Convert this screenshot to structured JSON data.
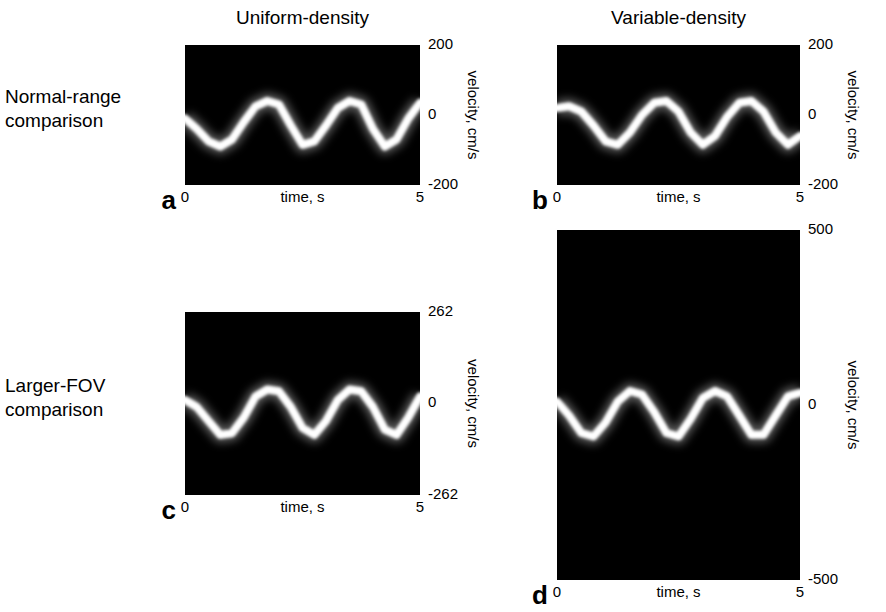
{
  "figure": {
    "column_titles": [
      "Uniform-density",
      "Variable-density"
    ],
    "row_titles": [
      "Normal-range comparison",
      "Larger-FOV comparison"
    ]
  },
  "chart_data": [
    {
      "type": "line",
      "panel": "a",
      "x_label": "time, s",
      "y_label": "velocity, cm/s",
      "xlim": [
        0,
        5
      ],
      "xticks": [
        0,
        5
      ],
      "ylim": [
        -200,
        200
      ],
      "yticks": [
        200,
        0,
        -200
      ],
      "color": "#ffffff",
      "x": [
        0,
        0.25,
        0.5,
        0.75,
        1,
        1.25,
        1.5,
        1.75,
        2,
        2.25,
        2.5,
        2.75,
        3,
        3.25,
        3.5,
        3.75,
        4,
        4.25,
        4.5,
        4.75,
        5
      ],
      "values": [
        -10,
        -40,
        -75,
        -90,
        -70,
        -20,
        25,
        40,
        30,
        -30,
        -85,
        -75,
        -30,
        20,
        40,
        30,
        -40,
        -90,
        -70,
        -10,
        35
      ]
    },
    {
      "type": "line",
      "panel": "b",
      "x_label": "time, s",
      "y_label": "velocity, cm/s",
      "xlim": [
        0,
        5
      ],
      "xticks": [
        0,
        5
      ],
      "ylim": [
        -200,
        200
      ],
      "yticks": [
        200,
        0,
        -200
      ],
      "color": "#ffffff",
      "x": [
        0,
        0.25,
        0.5,
        0.75,
        1,
        1.25,
        1.5,
        1.75,
        2,
        2.25,
        2.5,
        2.75,
        3,
        3.25,
        3.5,
        3.75,
        4,
        4.25,
        4.5,
        4.75,
        5
      ],
      "values": [
        20,
        25,
        10,
        -30,
        -75,
        -85,
        -50,
        0,
        35,
        40,
        10,
        -50,
        -85,
        -60,
        -5,
        35,
        40,
        10,
        -50,
        -85,
        -60
      ]
    },
    {
      "type": "line",
      "panel": "c",
      "x_label": "time, s",
      "y_label": "velocity, cm/s",
      "xlim": [
        0,
        5
      ],
      "xticks": [
        0,
        5
      ],
      "ylim": [
        -262,
        262
      ],
      "yticks": [
        262,
        0,
        -262
      ],
      "color": "#ffffff",
      "x": [
        0,
        0.25,
        0.5,
        0.75,
        1,
        1.25,
        1.5,
        1.75,
        2,
        2.25,
        2.5,
        2.75,
        3,
        3.25,
        3.5,
        3.75,
        4,
        4.25,
        4.5,
        4.75,
        5
      ],
      "values": [
        10,
        -10,
        -50,
        -90,
        -85,
        -40,
        20,
        40,
        35,
        -10,
        -70,
        -90,
        -50,
        10,
        40,
        35,
        -10,
        -75,
        -90,
        -40,
        20
      ]
    },
    {
      "type": "line",
      "panel": "d",
      "x_label": "time, s",
      "y_label": "velocity, cm/s",
      "xlim": [
        0,
        5
      ],
      "xticks": [
        0,
        5
      ],
      "ylim": [
        -500,
        500
      ],
      "yticks": [
        500,
        0,
        -500
      ],
      "color": "#ffffff",
      "x": [
        0,
        0.25,
        0.5,
        0.75,
        1,
        1.25,
        1.5,
        1.75,
        2,
        2.25,
        2.5,
        2.75,
        3,
        3.25,
        3.5,
        3.75,
        4,
        4.25,
        4.5,
        4.75,
        5
      ],
      "values": [
        10,
        -30,
        -80,
        -90,
        -50,
        10,
        40,
        30,
        -20,
        -80,
        -90,
        -40,
        20,
        40,
        25,
        -30,
        -85,
        -85,
        -30,
        25,
        35
      ]
    }
  ]
}
